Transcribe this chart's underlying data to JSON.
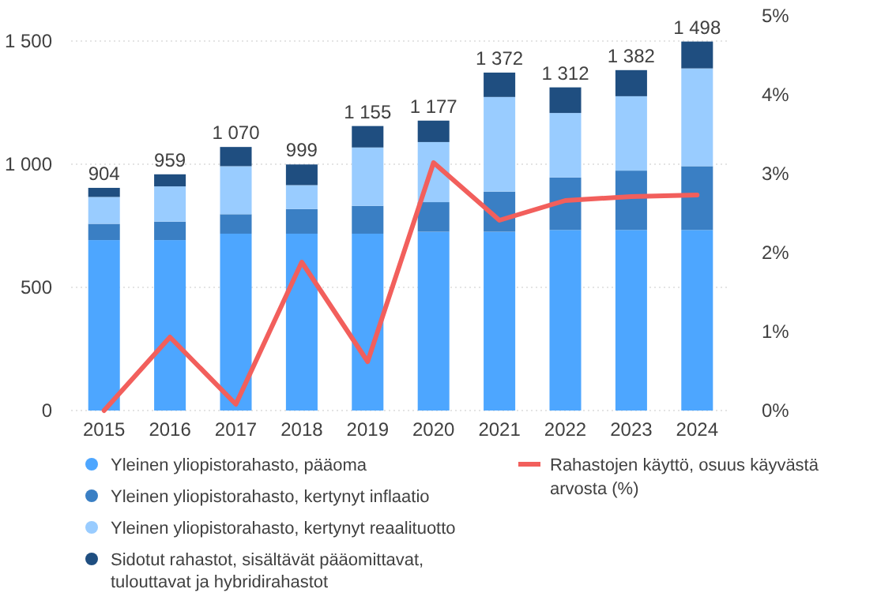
{
  "chart_data": {
    "type": "bar",
    "stacked": true,
    "categories": [
      "2015",
      "2016",
      "2017",
      "2018",
      "2019",
      "2020",
      "2021",
      "2022",
      "2023",
      "2024"
    ],
    "series": [
      {
        "name": "Yleinen yliopistorahasto, pääoma",
        "color": "#4da6ff",
        "values": [
          692,
          692,
          718,
          718,
          718,
          726,
          726,
          733,
          733,
          733
        ]
      },
      {
        "name": "Yleinen yliopistorahasto, kertynyt inflaatio",
        "color": "#3a7fc4",
        "values": [
          66,
          75,
          79,
          100,
          113,
          120,
          163,
          213,
          241,
          259
        ]
      },
      {
        "name": "Yleinen yliopistorahasto, kertynyt reaalituotto",
        "color": "#99ccff",
        "values": [
          109,
          143,
          195,
          97,
          237,
          244,
          384,
          262,
          302,
          397
        ]
      },
      {
        "name": "Sidotut rahastot, sisältävät pääomittavat, tulouttavat ja hybridirahastot",
        "color": "#1f4e80",
        "values": [
          37,
          49,
          78,
          84,
          87,
          87,
          99,
          104,
          106,
          109
        ]
      },
      {
        "name": "Rahastojen käyttö, osuus käyvästä arvosta (%)",
        "type": "line",
        "axis": "y2",
        "color": "#f25f5c",
        "values": [
          0,
          0.93,
          0.08,
          1.88,
          0.62,
          3.14,
          2.41,
          2.66,
          2.71,
          2.73
        ]
      }
    ],
    "totals": [
      "904",
      "959",
      "1 070",
      "999",
      "1 155",
      "1 177",
      "1 372",
      "1 312",
      "1 382",
      "1 498"
    ],
    "ylim": [
      0,
      1500
    ],
    "yticks": [
      {
        "value": 0,
        "label": "0"
      },
      {
        "value": 500,
        "label": "500"
      },
      {
        "value": 1000,
        "label": "1 000"
      },
      {
        "value": 1500,
        "label": "1 500"
      }
    ],
    "y2lim": [
      0,
      5
    ],
    "y2ticks": [
      {
        "value": 0,
        "label": "0%"
      },
      {
        "value": 1,
        "label": "1%"
      },
      {
        "value": 2,
        "label": "2%"
      },
      {
        "value": 3,
        "label": "3%"
      },
      {
        "value": 4,
        "label": "4%"
      },
      {
        "value": 5,
        "label": "5%"
      }
    ],
    "grid": "y",
    "legend": "bottom",
    "marker": "none"
  }
}
